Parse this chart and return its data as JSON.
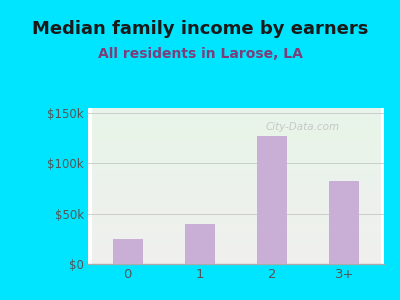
{
  "categories": [
    "0",
    "1",
    "2",
    "3+"
  ],
  "values": [
    25000,
    40000,
    127000,
    82000
  ],
  "bar_color": "#c9aed6",
  "title": "Median family income by earners",
  "subtitle": "All residents in Larose, LA",
  "title_color": "#1a1a1a",
  "subtitle_color": "#7a3f7a",
  "background_outer": "#00e5ff",
  "background_inner_top": "#e8f5e9",
  "background_inner_bottom": "#f0f0ee",
  "yticks": [
    0,
    50000,
    100000,
    150000
  ],
  "ytick_labels": [
    "$0",
    "$50k",
    "$100k",
    "$150k"
  ],
  "ylim": [
    0,
    155000
  ],
  "title_fontsize": 13,
  "subtitle_fontsize": 10,
  "tick_color": "#555555",
  "axis_color": "#aaaaaa",
  "watermark": "City-Data.com",
  "watermark_color": "#c0c0c0"
}
